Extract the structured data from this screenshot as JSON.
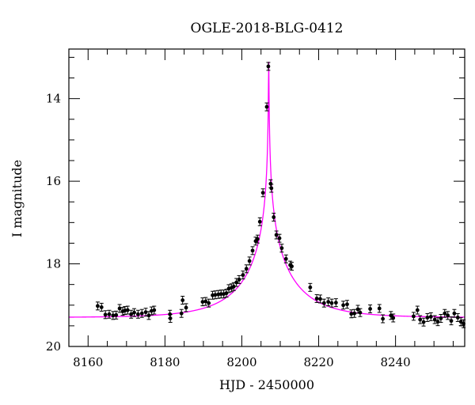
{
  "chart_data": {
    "type": "scatter",
    "title": "OGLE-2018-BLG-0412",
    "xlabel": "HJD - 2450000",
    "ylabel": "I magnitude",
    "xlim": [
      8155,
      8258
    ],
    "ylim": [
      20,
      12.8
    ],
    "y_inverted": true,
    "x_ticks": [
      8160,
      8180,
      8200,
      8220,
      8240
    ],
    "y_ticks": [
      14,
      16,
      18,
      20
    ],
    "grid": false,
    "colors": {
      "points": "#000000",
      "model": "#ff00ff"
    },
    "series": [
      {
        "x": [
          8162.5,
          8163.5,
          8164.5,
          8165.5,
          8166.5,
          8167.3,
          8168.2,
          8169.0,
          8169.6,
          8170.3,
          8171.2,
          8172.0,
          8173.0,
          8174.0,
          8175.0,
          8175.8,
          8176.5,
          8177.2,
          8181.3,
          8181.4,
          8184.3,
          8184.6,
          8185.5,
          8189.8,
          8190.6,
          8191.4,
          8192.4,
          8193.1,
          8193.9,
          8194.6,
          8195.3,
          8196.0,
          8196.6,
          8197.3,
          8197.9,
          8198.6,
          8199.3,
          8200.3,
          8201.2,
          8202.0,
          8202.8,
          8203.6,
          8204.1,
          8204.7,
          8205.5,
          8206.5,
          8206.9,
          8207.5,
          8207.7,
          8208.3,
          8209.0,
          8209.8,
          8210.4,
          8211.5,
          8212.6,
          8213.0,
          8217.8,
          8219.5,
          8220.4,
          8221.4,
          8222.5,
          8223.4,
          8224.5,
          8226.4,
          8227.4,
          8228.5,
          8229.3,
          8230.2,
          8230.8,
          8233.4,
          8235.8,
          8236.7,
          8238.8,
          8239.4,
          8244.7,
          8245.7,
          8246.4,
          8247.3,
          8248.3,
          8249.2,
          8250.2,
          8251.0,
          8251.8,
          8252.8,
          8253.6,
          8254.5,
          8255.3,
          8256.2,
          8257.0,
          8257.7
        ],
        "y": [
          19.02,
          19.05,
          19.23,
          19.22,
          19.25,
          19.24,
          19.08,
          19.15,
          19.13,
          19.12,
          19.22,
          19.18,
          19.22,
          19.2,
          19.17,
          19.25,
          19.14,
          19.12,
          19.22,
          19.32,
          19.2,
          18.88,
          19.06,
          18.92,
          18.91,
          18.95,
          18.76,
          18.75,
          18.74,
          18.73,
          18.73,
          18.71,
          18.6,
          18.58,
          18.55,
          18.45,
          18.38,
          18.27,
          18.12,
          17.93,
          17.68,
          17.45,
          17.4,
          16.98,
          16.28,
          14.2,
          13.22,
          16.06,
          16.17,
          16.87,
          17.3,
          17.38,
          17.62,
          17.88,
          18.03,
          18.06,
          18.57,
          18.84,
          18.85,
          18.95,
          18.92,
          18.95,
          18.94,
          19.0,
          18.98,
          19.21,
          19.2,
          19.1,
          19.18,
          19.09,
          19.08,
          19.33,
          19.25,
          19.31,
          19.27,
          19.12,
          19.35,
          19.41,
          19.3,
          19.28,
          19.35,
          19.4,
          19.32,
          19.2,
          19.25,
          19.38,
          19.2,
          19.3,
          19.4,
          19.45
        ]
      }
    ],
    "model": {
      "type": "line",
      "peak_x": 8207.0,
      "peak_mag": 13.05,
      "baseline_mag": 19.3
    }
  }
}
